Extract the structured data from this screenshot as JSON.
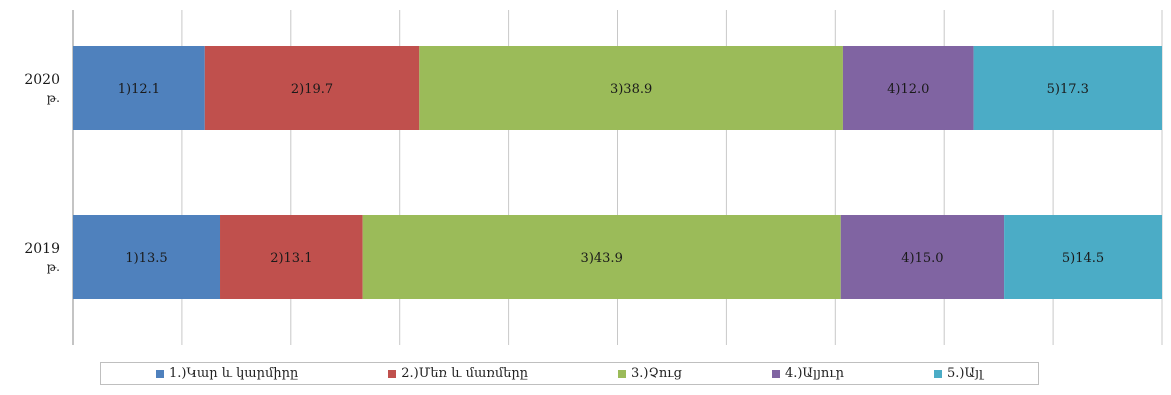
{
  "colors": {
    "gridline": "#c8c8c8",
    "axis": "#8a8a8a",
    "label_text": "#1a1a1a"
  },
  "chart_data": {
    "type": "bar",
    "orientation": "horizontal",
    "stacked": "100%",
    "categories": [
      {
        "line1": "2020",
        "line2": "թ."
      },
      {
        "line1": "2019",
        "line2": "թ."
      }
    ],
    "series": [
      {
        "name": "1.)Կար և կարմիրը",
        "color": "#4f81bd",
        "values": [
          12.1,
          13.5
        ],
        "labels": [
          "1)12.1",
          "1)13.5"
        ]
      },
      {
        "name": "2.)Մեռ և մառմերը",
        "color": "#c0504d",
        "values": [
          19.7,
          13.1
        ],
        "labels": [
          "2)19.7",
          "2)13.1"
        ]
      },
      {
        "name": "3.)Չուց",
        "color": "#9bbb59",
        "values": [
          38.9,
          43.9
        ],
        "labels": [
          "3)38.9",
          "3)43.9"
        ]
      },
      {
        "name": "4.)Ալյուր",
        "color": "#8064a2",
        "values": [
          12.0,
          15.0
        ],
        "labels": [
          "4)12.0",
          "4)15.0"
        ]
      },
      {
        "name": "5.)Այլ",
        "color": "#4bacc6",
        "values": [
          17.3,
          14.5
        ],
        "labels": [
          "5)17.3",
          "5)14.5"
        ]
      }
    ],
    "xlim": [
      0,
      100
    ],
    "grid": true,
    "legend_position": "bottom"
  }
}
